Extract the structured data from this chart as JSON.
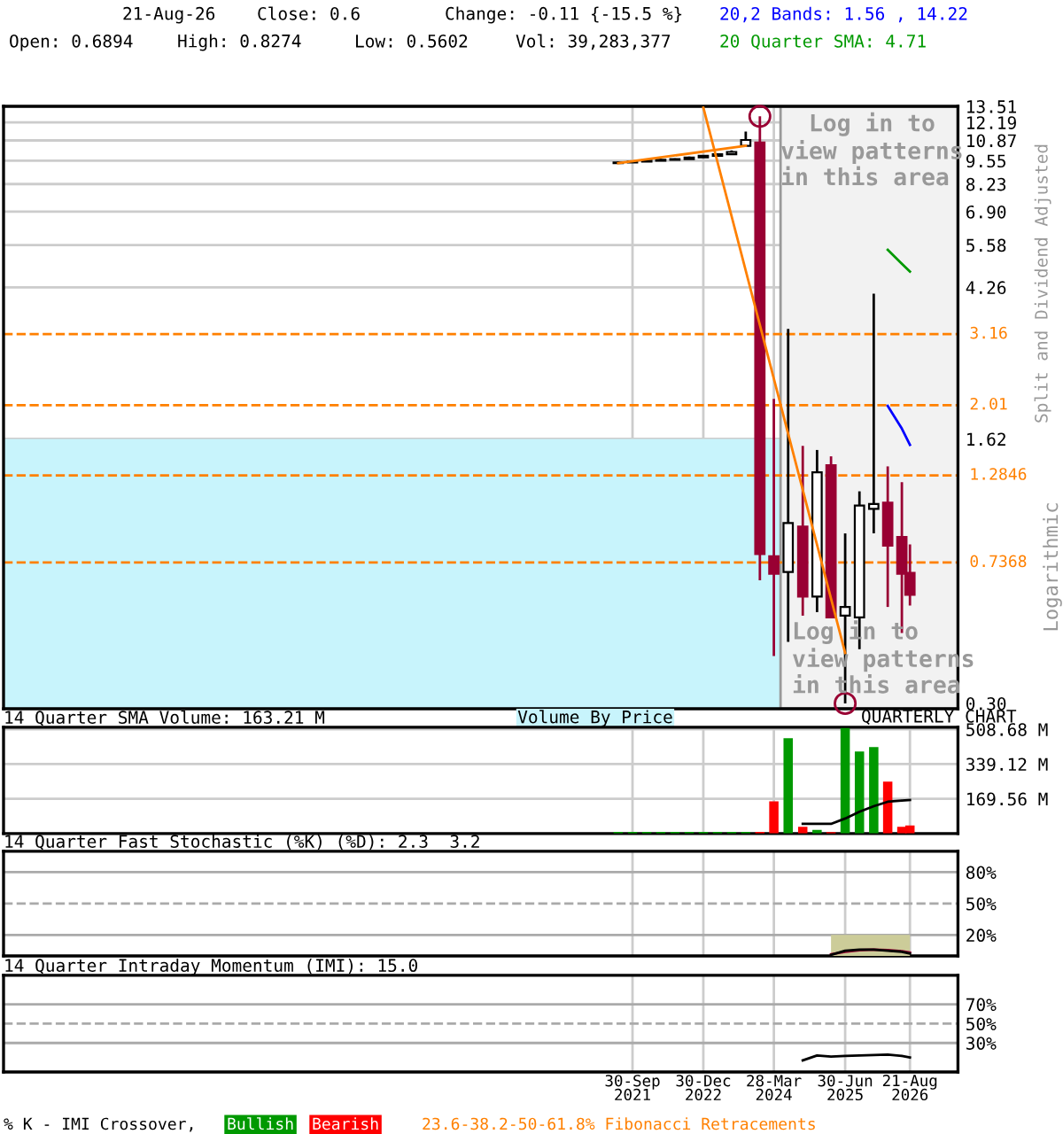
{
  "chart_data": [
    {
      "type": "candlestick",
      "x": [
        "2021-06-30",
        "2021-09-30",
        "2021-12-31",
        "2022-03-31",
        "2022-06-30",
        "2022-09-30",
        "2022-12-30",
        "2023-03-31",
        "2023-06-30",
        "2023-09-29",
        "2023-12-29",
        "2024-03-28",
        "2024-06-28",
        "2024-09-30",
        "2024-12-31",
        "2025-03-31",
        "2025-06-30",
        "2025-09-30",
        "2025-12-31",
        "2026-03-31",
        "2026-06-30",
        "2026-08-21"
      ],
      "ohlc": [
        [
          9.4,
          9.5,
          9.4,
          9.45
        ],
        [
          9.45,
          9.55,
          9.45,
          9.5
        ],
        [
          9.5,
          9.6,
          9.5,
          9.55
        ],
        [
          9.55,
          9.65,
          9.55,
          9.6
        ],
        [
          9.6,
          9.7,
          9.6,
          9.65
        ],
        [
          9.65,
          9.8,
          9.65,
          9.75
        ],
        [
          9.75,
          9.9,
          9.75,
          9.85
        ],
        [
          9.85,
          10.0,
          9.85,
          9.95
        ],
        [
          9.95,
          10.2,
          9.95,
          10.1
        ],
        [
          10.5,
          11.5,
          10.5,
          10.9
        ],
        [
          10.72,
          12.67,
          0.658,
          0.778
        ],
        [
          0.767,
          2.09,
          0.406,
          0.686
        ],
        [
          0.694,
          3.27,
          0.444,
          0.948
        ],
        [
          0.927,
          1.55,
          0.525,
          0.593
        ],
        [
          0.593,
          1.51,
          0.537,
          1.31
        ],
        [
          1.37,
          1.45,
          0.519,
          0.519
        ],
        [
          0.525,
          0.887,
          0.3,
          0.555
        ],
        [
          0.519,
          1.16,
          0.424,
          1.06
        ],
        [
          1.037,
          4.09,
          0.887,
          1.07
        ],
        [
          1.08,
          1.36,
          0.555,
          0.82
        ],
        [
          0.867,
          1.23,
          0.47,
          0.686
        ],
        [
          0.6894,
          0.8274,
          0.5602,
          0.6
        ]
      ],
      "colors": [
        "#000000",
        "#000000",
        "#000000",
        "#000000",
        "#000000",
        "#000000",
        "#000000",
        "#000000",
        "#000000",
        "#000000",
        "#990033",
        "#990033",
        "#000000",
        "#990033",
        "#000000",
        "#990033",
        "#000000",
        "#000000",
        "#000000",
        "#990033",
        "#990033",
        "#990033"
      ],
      "series": [
        {
          "type": "line",
          "color": "#ff8000",
          "x": [
            "2021-06-30",
            "2023-09-29"
          ],
          "values": [
            9.4,
            10.5
          ]
        },
        {
          "type": "line",
          "color": "#ff8000",
          "x": [
            "2022-12-30",
            "2025-06-30"
          ],
          "values": [
            13.4,
            0.414
          ]
        },
        {
          "type": "line",
          "color": "#009900",
          "x": [
            "2026-03-31",
            "2026-06-30",
            "2026-08-21"
          ],
          "values": [
            5.41,
            4.95,
            4.71
          ]
        },
        {
          "type": "line",
          "color": "#0000ff",
          "x": [
            "2026-03-31",
            "2026-06-30",
            "2026-08-21"
          ],
          "values": [
            2.0,
            1.73,
            1.56
          ]
        },
        {
          "type": "scatter",
          "color": "#990033",
          "marker": "circle",
          "x": [
            "2023-12-29",
            "2025-06-30"
          ],
          "values": [
            12.67,
            0.3
          ]
        }
      ],
      "log": true,
      "ylim": [
        0.29,
        13.51
      ],
      "yticks": [
        13.51,
        12.19,
        10.87,
        9.55,
        8.23,
        {
          "value": 6.9,
          "label": "6.90"
        },
        5.58,
        4.26,
        1.62,
        {
          "value": 0.3,
          "label": "0.30"
        }
      ],
      "xlim": [
        "2010-08-30",
        "2027-06-26"
      ],
      "xticks": [
        {
          "value": "2021-09-30",
          "label": null
        },
        {
          "value": "2022-12-30",
          "label": null
        },
        {
          "value": "2024-03-28",
          "label": null
        },
        {
          "value": "2025-06-30",
          "label": null
        },
        {
          "value": "2026-08-21",
          "label": null
        }
      ],
      "tick_labels": "y",
      "grid": true,
      "ylabel": "Split and Dividend Adjusted",
      "ref_lines": [
        {
          "axis": "y",
          "value": 3.16,
          "label": "3.16",
          "color": "#ff8000",
          "line_style": "dashed"
        },
        {
          "axis": "y",
          "value": 2.01,
          "label": "2.01",
          "color": "#ff8000",
          "line_style": "dashed"
        },
        {
          "axis": "y",
          "value": 1.2846,
          "label": "1.2846",
          "color": "#ff8000",
          "line_style": "dashed"
        },
        {
          "axis": "y",
          "value": 0.7368,
          "label": "0.7368",
          "color": "#ff8000",
          "line_style": "dashed"
        }
      ],
      "bands": [
        {
          "axis": "y",
          "from": 0.29,
          "to": 1.62,
          "color": "#c8f4fc",
          "label": "Volume By Price"
        },
        {
          "axis": "x",
          "from": "2024-05-10",
          "to": "2027-06-26",
          "color": "#f2f2f2",
          "label": "Log in to\nview patterns\nin this area"
        }
      ],
      "annotations": [
        "21-Aug-26",
        "Close: 0.6",
        "Change: -0.11 {-15.5 %}",
        "20,2 Bands: 1.56 , 14.22",
        "Open: 0.6894",
        "High: 0.8274",
        "Low: 0.5602",
        "Vol: 39,283,377",
        "20 Quarter SMA: 4.71",
        "Log in to\nview patterns\nin this area",
        "QUARTERLY CHART",
        "Logarithmic"
      ]
    },
    {
      "type": "bar",
      "title": "14 Quarter SMA Volume: 163.21 M",
      "series": [
        {
          "type": "bar",
          "x": [
            "2021-06-30",
            "2021-09-30",
            "2021-12-31",
            "2022-03-31",
            "2022-06-30",
            "2022-09-30",
            "2022-12-30",
            "2023-03-31",
            "2023-06-30",
            "2023-09-29",
            "2023-12-29",
            "2024-03-28",
            "2024-06-28",
            "2024-09-30",
            "2024-12-31",
            "2025-03-31",
            "2025-06-30",
            "2025-09-30",
            "2025-12-31",
            "2026-03-31",
            "2026-06-30",
            "2026-08-21"
          ],
          "values": [
            8,
            8,
            8,
            8,
            8,
            8,
            8,
            8,
            8,
            8,
            8,
            157,
            465,
            33,
            17,
            7,
            515,
            400,
            422,
            253,
            33,
            39.28
          ],
          "colors": [
            "#009900",
            "#009900",
            "#009900",
            "#009900",
            "#009900",
            "#009900",
            "#009900",
            "#009900",
            "#009900",
            "#009900",
            "#ff0000",
            "#ff0000",
            "#009900",
            "#ff0000",
            "#009900",
            "#ff0000",
            "#009900",
            "#009900",
            "#009900",
            "#ff0000",
            "#ff0000",
            "#ff0000"
          ]
        },
        {
          "type": "line",
          "color": "#000000",
          "x": [
            "2024-09-30",
            "2024-12-31",
            "2025-03-31",
            "2025-06-30",
            "2025-09-30",
            "2025-12-31",
            "2026-03-31",
            "2026-06-30",
            "2026-08-21"
          ],
          "values": [
            47,
            47,
            47,
            73,
            106,
            133,
            155,
            161,
            163.21
          ]
        }
      ],
      "ylim": [
        0,
        519
      ],
      "yticks": [
        {
          "value": 169.56,
          "label": "169.56 M"
        },
        {
          "value": 339.12,
          "label": "339.12 M"
        },
        {
          "value": 508.68,
          "label": "508.68 M"
        }
      ],
      "xlim": [
        "2010-08-30",
        "2027-06-26"
      ],
      "xticks": [
        {
          "value": "2021-09-30",
          "label": null
        },
        {
          "value": "2022-12-30",
          "label": null
        },
        {
          "value": "2024-03-28",
          "label": null
        },
        {
          "value": "2025-06-30",
          "label": null
        },
        {
          "value": "2026-08-21",
          "label": null
        }
      ],
      "tick_labels": "y",
      "grid": true
    },
    {
      "type": "line",
      "title": "14 Quarter Fast Stochastic (%K) (%D): 2.3  3.2",
      "series": [
        {
          "type": "area",
          "color": "#cccc99",
          "x": [
            "2025-03-31",
            "2025-06-30",
            "2025-09-30",
            "2025-12-31",
            "2026-03-31",
            "2026-06-30",
            "2026-08-21"
          ],
          "values": [
            20,
            20,
            20,
            20,
            20,
            20,
            20
          ]
        },
        {
          "type": "line",
          "color": "#990033",
          "x": [
            "2025-03-31",
            "2025-06-30",
            "2025-09-30",
            "2025-12-31",
            "2026-03-31",
            "2026-06-30",
            "2026-08-21"
          ],
          "values": [
            1.5,
            4,
            5.5,
            6,
            5.5,
            4.5,
            3.2
          ]
        },
        {
          "type": "line",
          "color": "#000000",
          "x": [
            "2025-03-31",
            "2025-06-30",
            "2025-09-30",
            "2025-12-31",
            "2026-03-31",
            "2026-06-30",
            "2026-08-21"
          ],
          "values": [
            1,
            5,
            6,
            6,
            5,
            4,
            2.3
          ]
        }
      ],
      "ylim": [
        0,
        100
      ],
      "yticks": [
        {
          "value": 20,
          "label": "20%"
        },
        {
          "value": 50,
          "label": "50%"
        },
        {
          "value": 80,
          "label": "80%"
        }
      ],
      "xlim": [
        "2010-08-30",
        "2027-06-26"
      ],
      "xticks": [
        {
          "value": "2021-09-30",
          "label": null
        },
        {
          "value": "2022-12-30",
          "label": null
        },
        {
          "value": "2024-03-28",
          "label": null
        },
        {
          "value": "2025-06-30",
          "label": null
        },
        {
          "value": "2026-08-21",
          "label": null
        }
      ],
      "tick_labels": "y",
      "grid": "x",
      "ref_lines": [
        {
          "axis": "y",
          "value": 20,
          "color": "#aaaaaa",
          "line_style": "solid"
        },
        {
          "axis": "y",
          "value": 50,
          "color": "#aaaaaa",
          "line_style": "dashed"
        },
        {
          "axis": "y",
          "value": 80,
          "color": "#aaaaaa",
          "line_style": "solid"
        }
      ]
    },
    {
      "type": "line",
      "title": "14 Quarter Intraday Momentum (IMI): 15.0",
      "series": [
        {
          "type": "line",
          "color": "#000000",
          "x": [
            "2024-09-30",
            "2024-12-31",
            "2025-03-31",
            "2025-06-30",
            "2025-09-30",
            "2025-12-31",
            "2026-03-31",
            "2026-06-30",
            "2026-08-21"
          ],
          "values": [
            12,
            17,
            16,
            16.5,
            17,
            17.5,
            18,
            16.5,
            15
          ]
        }
      ],
      "ylim": [
        0,
        100
      ],
      "yticks": [
        {
          "value": 30,
          "label": "30%"
        },
        {
          "value": 50,
          "label": "50%"
        },
        {
          "value": 70,
          "label": "70%"
        }
      ],
      "xlim": [
        "2010-08-30",
        "2027-06-26"
      ],
      "xticks": [
        {
          "value": "2021-09-30",
          "label": "30-Sep\n2021"
        },
        {
          "value": "2022-12-30",
          "label": "30-Dec\n2022"
        },
        {
          "value": "2024-03-28",
          "label": "28-Mar\n2024"
        },
        {
          "value": "2025-06-30",
          "label": "30-Jun\n2025"
        },
        {
          "value": "2026-08-21",
          "label": "21-Aug\n2026"
        }
      ],
      "grid": "x",
      "ref_lines": [
        {
          "axis": "y",
          "value": 30,
          "color": "#aaaaaa",
          "line_style": "solid"
        },
        {
          "axis": "y",
          "value": 50,
          "color": "#aaaaaa",
          "line_style": "dashed"
        },
        {
          "axis": "y",
          "value": 70,
          "color": "#aaaaaa",
          "line_style": "solid"
        }
      ],
      "annotations": [
        "% K - IMI Crossover,",
        "Bullish",
        "Bearish",
        "23.6-38.2-50-61.8% Fibonacci Retracements"
      ]
    }
  ]
}
